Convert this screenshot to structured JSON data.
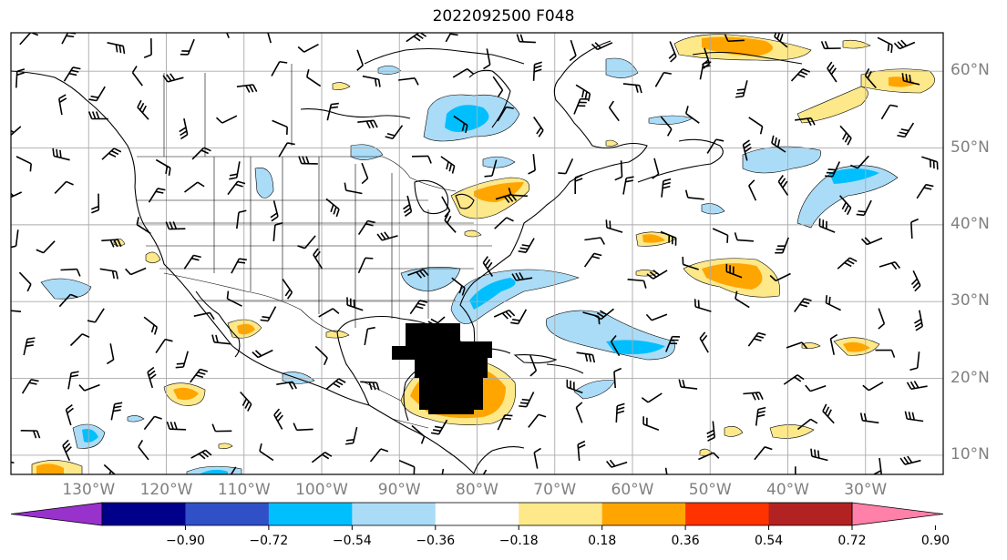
{
  "title": "2022092500 F048",
  "map": {
    "projection": "cylindrical",
    "lon_range": [
      -140,
      -20
    ],
    "lat_range": [
      7.5,
      65
    ],
    "gridlines": true,
    "features": [
      "coastlines",
      "country-borders",
      "us-state-borders",
      "wind-barbs",
      "filled-contours",
      "hurricane-barbs-caribbean"
    ]
  },
  "lat_labels": [
    {
      "label": "60°N",
      "value": 60
    },
    {
      "label": "50°N",
      "value": 50
    },
    {
      "label": "40°N",
      "value": 40
    },
    {
      "label": "30°N",
      "value": 30
    },
    {
      "label": "20°N",
      "value": 20
    },
    {
      "label": "10°N",
      "value": 10
    }
  ],
  "lon_labels": [
    {
      "label": "130°W",
      "value": -130
    },
    {
      "label": "120°W",
      "value": -120
    },
    {
      "label": "110°W",
      "value": -110
    },
    {
      "label": "100°W",
      "value": -100
    },
    {
      "label": "90°W",
      "value": -90
    },
    {
      "label": "80°W",
      "value": -80
    },
    {
      "label": "70°W",
      "value": -70
    },
    {
      "label": "60°W",
      "value": -60
    },
    {
      "label": "50°W",
      "value": -50
    },
    {
      "label": "40°W",
      "value": -40
    },
    {
      "label": "30°W",
      "value": -30
    }
  ],
  "colorbar": {
    "colors": [
      "#9932cc",
      "#00008b",
      "#3050c8",
      "#00bfff",
      "#abdcf7",
      "#ffffff",
      "#fde88a",
      "#ffa500",
      "#ff3300",
      "#b22222",
      "#ff80a8"
    ],
    "tick_labels": [
      "−0.90",
      "−0.72",
      "−0.54",
      "−0.36",
      "−0.18",
      "0.18",
      "0.36",
      "0.54",
      "0.72",
      "0.90"
    ]
  }
}
